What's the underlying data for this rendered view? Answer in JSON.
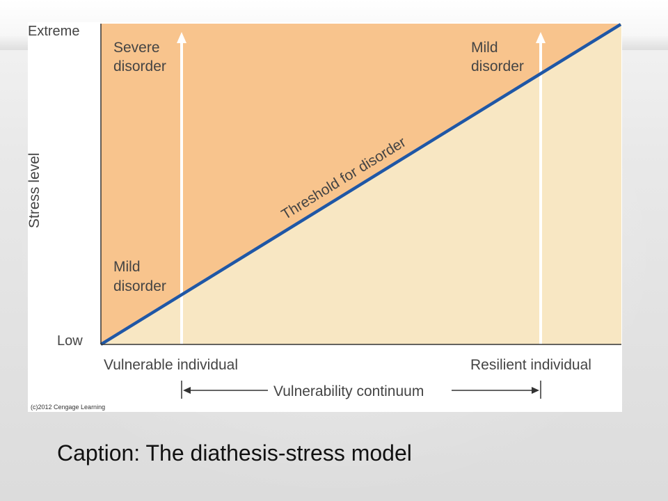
{
  "figure": {
    "y_axis": {
      "label": "Stress level",
      "top_label": "Extreme",
      "bottom_label": "Low"
    },
    "x_axis": {
      "left_label": "Vulnerable individual",
      "right_label": "Resilient individual",
      "continuum_label": "Vulnerability continuum"
    },
    "threshold_label": "Threshold for disorder",
    "region_labels": {
      "left_top": [
        "Severe",
        "disorder"
      ],
      "left_bottom": [
        "Mild",
        "disorder"
      ],
      "right_top": [
        "Mild",
        "disorder"
      ]
    },
    "copyright": "(c)2012 Cengage Learning",
    "colors": {
      "disorder_region": "#f8c48d",
      "no_disorder_region": "#f8e7c3",
      "threshold_line": "#1f57a6",
      "arrows": "#ffffff",
      "axis": "#333333"
    }
  },
  "caption": "Caption: The diathesis-stress model"
}
